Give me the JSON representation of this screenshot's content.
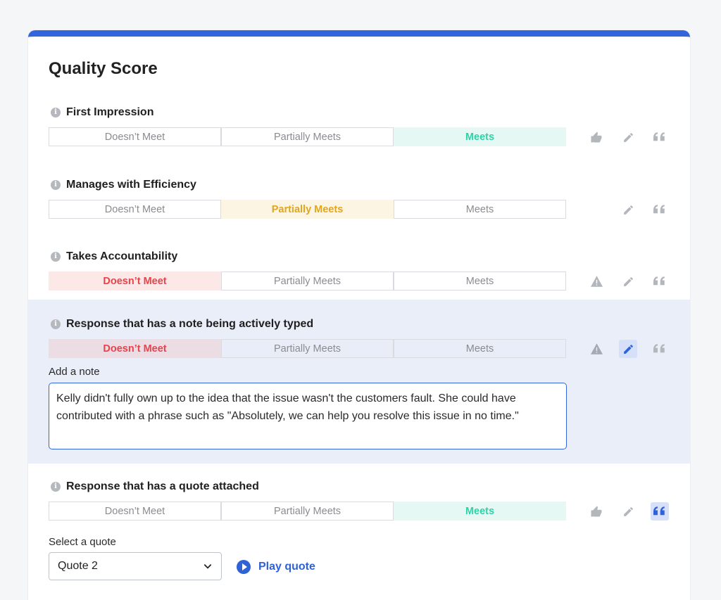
{
  "title": "Quality Score",
  "options": [
    "Doesn’t Meet",
    "Partially Meets",
    "Meets"
  ],
  "criteria": [
    {
      "label": "First Impression",
      "selected": "Meets"
    },
    {
      "label": "Manages with Efficiency",
      "selected": "Partially Meets"
    },
    {
      "label": "Takes Accountability",
      "selected": "Doesn’t Meet"
    },
    {
      "label": "Response that has a note being actively typed",
      "selected": "Doesn’t Meet",
      "note_label": "Add a note",
      "note_text": "Kelly didn't fully own up to the idea that the issue wasn't the customers fault. She could have contributed with a phrase such as \"Absolutely, we can help you resolve this issue in no time.\""
    },
    {
      "label": "Response that has a quote attached",
      "selected": "Meets",
      "quote_label": "Select a quote",
      "quote_value": "Quote 2",
      "play_label": "Play quote"
    }
  ],
  "colors": {
    "accent": "#3366dd",
    "red": "#e8434b",
    "yellow": "#e3a51b",
    "green": "#2dd3a6",
    "icon_gray": "#b3b6bb"
  },
  "icons": [
    "info-icon",
    "thumbs-up-icon",
    "pencil-icon",
    "quote-icon",
    "warning-icon",
    "chevron-down-icon",
    "play-icon"
  ]
}
